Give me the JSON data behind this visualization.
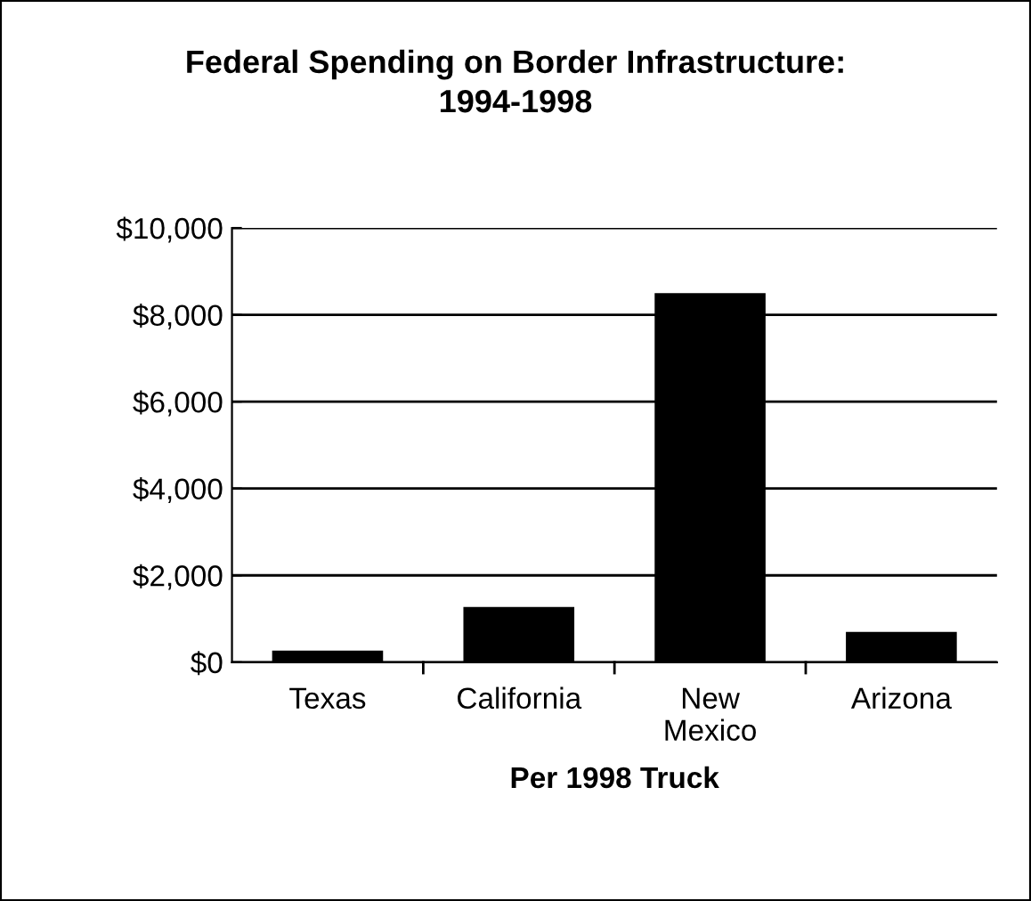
{
  "chart_data": {
    "type": "bar",
    "title": "Federal Spending on Border Infrastructure:\n1994-1998",
    "xlabel": "Per 1998 Truck",
    "categories": [
      "Texas",
      "California",
      "New\nMexico",
      "Arizona"
    ],
    "values": [
      270,
      1270,
      8500,
      700
    ],
    "color": "#000000",
    "ylim": [
      0,
      10000
    ],
    "yticks": [
      {
        "value": 0,
        "label": "$0"
      },
      {
        "value": 2000,
        "label": "$2,000"
      },
      {
        "value": 4000,
        "label": "$4,000"
      },
      {
        "value": 6000,
        "label": "$6,000"
      },
      {
        "value": 8000,
        "label": "$8,000"
      },
      {
        "value": 10000,
        "label": "$10,000"
      }
    ],
    "grid": "y",
    "legend": false
  }
}
